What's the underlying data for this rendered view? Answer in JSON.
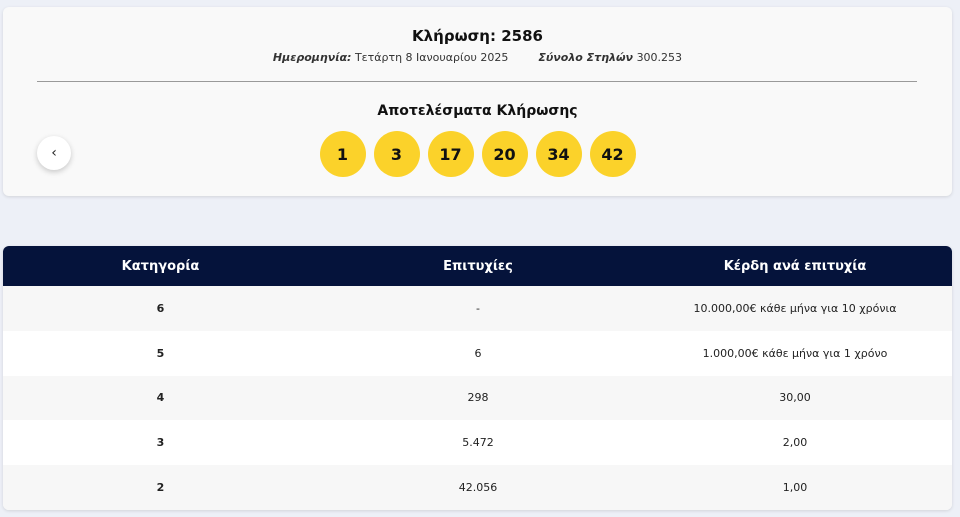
{
  "draw": {
    "title": "Κλήρωση: 2586",
    "date_label": "Ημερομηνία:",
    "date_value": "Τετάρτη 8 Ιανουαρίου 2025",
    "columns_label": "Σύνολο Στηλών",
    "columns_value": "300.253"
  },
  "results": {
    "title": "Αποτελέσματα Κλήρωσης",
    "numbers": [
      "1",
      "3",
      "17",
      "20",
      "34",
      "42"
    ],
    "ball_color": "#fbd22a"
  },
  "nav": {
    "prev_icon": "‹"
  },
  "table": {
    "headers": [
      "Κατηγορία",
      "Επιτυχίες",
      "Κέρδη ανά επιτυχία"
    ],
    "rows": [
      [
        "6",
        "-",
        "10.000,00€ κάθε μήνα για 10 χρόνια"
      ],
      [
        "5",
        "6",
        "1.000,00€ κάθε μήνα για 1 χρόνο"
      ],
      [
        "4",
        "298",
        "30,00"
      ],
      [
        "3",
        "5.472",
        "2,00"
      ],
      [
        "2",
        "42.056",
        "1,00"
      ]
    ],
    "header_color": "#05133b"
  }
}
